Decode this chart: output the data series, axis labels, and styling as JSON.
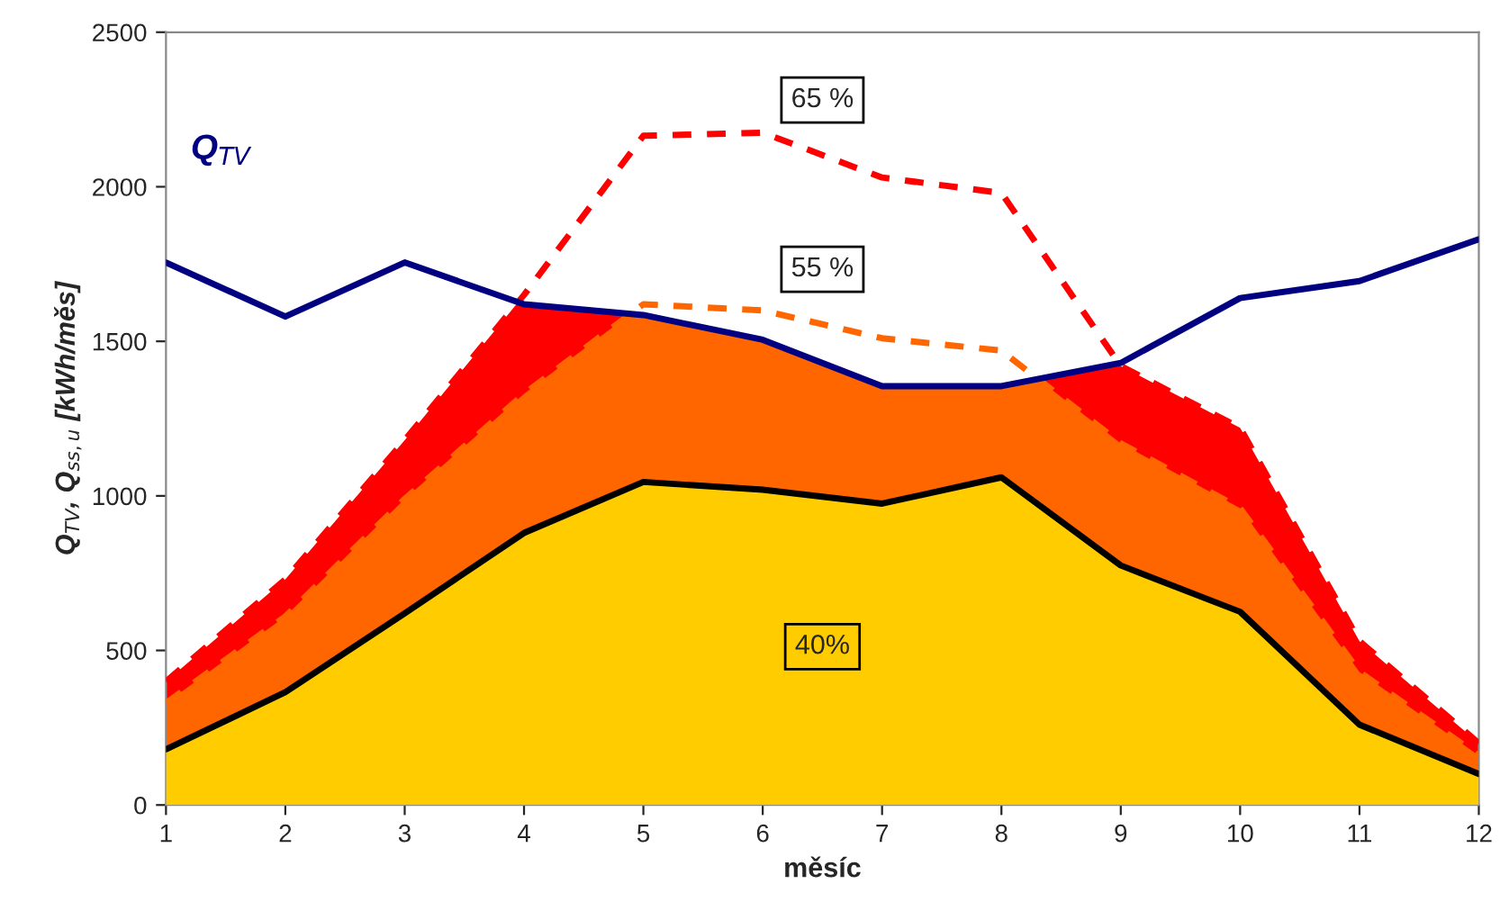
{
  "chart_data": {
    "type": "line",
    "xlabel": "měsíc",
    "ylabel": "Q$_{TV}$, Q$_{ss,u}$ [kWh/měs]",
    "x": [
      1,
      2,
      3,
      4,
      5,
      6,
      7,
      8,
      9,
      10,
      11,
      12
    ],
    "xlim": [
      1,
      12
    ],
    "xticks": [
      1,
      2,
      3,
      4,
      5,
      6,
      7,
      8,
      9,
      10,
      11,
      12
    ],
    "ylim": [
      0,
      2500
    ],
    "yticks": [
      0,
      500,
      1000,
      1500,
      2000,
      2500
    ],
    "grid": false,
    "legend": false,
    "series": [
      {
        "type": "area",
        "color": "#ff0000",
        "line_style": "dashed",
        "values": [
          400,
          730,
          1180,
          1650,
          2165,
          2175,
          2030,
          1980,
          1420,
          1220,
          530,
          200
        ]
      },
      {
        "type": "area",
        "color": "#ff6600",
        "line_style": "dashed",
        "values": [
          330,
          610,
          990,
          1330,
          1620,
          1600,
          1510,
          1470,
          1170,
          960,
          430,
          160
        ]
      },
      {
        "type": "area",
        "color": "#ffcc00",
        "line_style": "solid",
        "values": [
          180,
          365,
          620,
          880,
          1045,
          1020,
          975,
          1060,
          775,
          625,
          260,
          100
        ]
      },
      {
        "color": "#000080",
        "line_style": "solid",
        "values": [
          1755,
          1580,
          1755,
          1620,
          1585,
          1505,
          1355,
          1355,
          1430,
          1640,
          1695,
          1830
        ]
      }
    ],
    "annotations": [
      "65 %",
      "55 %",
      "40%",
      "Q$_{TV}$"
    ]
  }
}
